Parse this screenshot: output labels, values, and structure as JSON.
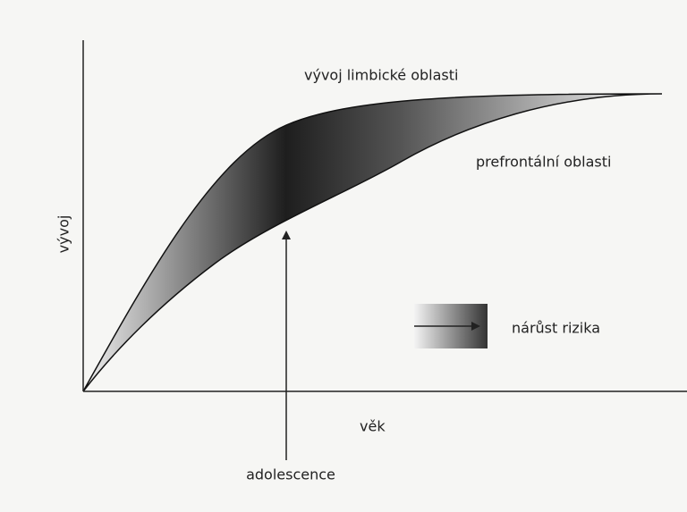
{
  "diagram": {
    "upper_curve_label": "vývoj limbické oblasti",
    "lower_curve_label": "prefrontální oblasti",
    "y_axis_label": "vývoj",
    "x_axis_label": "věk",
    "arrow_label": "adolescence",
    "legend_label": "nárůst rizika"
  }
}
